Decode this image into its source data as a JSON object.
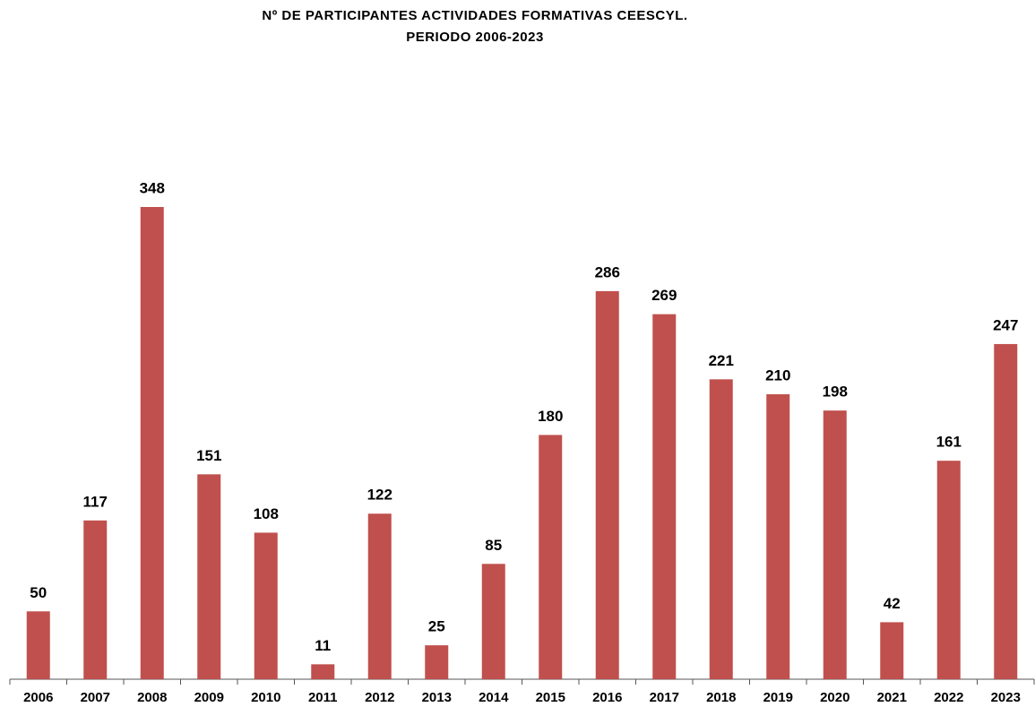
{
  "chart_data": {
    "type": "bar",
    "title": [
      "Nº DE PARTICIPANTES ACTIVIDADES FORMATIVAS CEESCYL.",
      "PERIODO 2006-2023"
    ],
    "categories": [
      "2006",
      "2007",
      "2008",
      "2009",
      "2010",
      "2011",
      "2012",
      "2013",
      "2014",
      "2015",
      "2016",
      "2017",
      "2018",
      "2019",
      "2020",
      "2021",
      "2022",
      "2023"
    ],
    "values": [
      50,
      117,
      348,
      151,
      108,
      11,
      122,
      25,
      85,
      180,
      286,
      269,
      221,
      210,
      198,
      42,
      161,
      247
    ],
    "color": "#c0504d"
  }
}
